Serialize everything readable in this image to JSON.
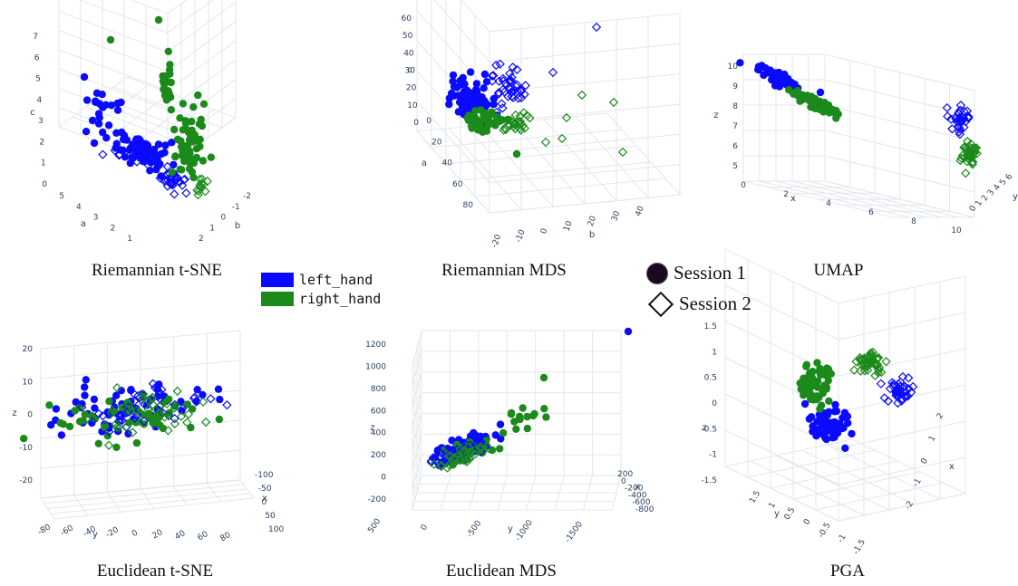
{
  "colors": {
    "left_hand": "#0a0aff",
    "right_hand": "#1b8a1b",
    "session1_marker": "#1a0a1e",
    "axis_text": "#2a3f5f",
    "grid": "#e2e6ee"
  },
  "legend": {
    "classes": [
      {
        "label": "left_hand",
        "color": "#0a0aff"
      },
      {
        "label": "right_hand",
        "color": "#1b8a1b"
      }
    ],
    "sessions": [
      {
        "label": "Session 1",
        "marker": "circle"
      },
      {
        "label": "Session 2",
        "marker": "diamond"
      }
    ]
  },
  "chart_data": [
    {
      "type": "scatter3d",
      "title": "Riemannian t-SNE",
      "axes": {
        "z": {
          "label": "c",
          "ticks": [
            "0",
            "1",
            "2",
            "3",
            "4",
            "5",
            "6",
            "7"
          ]
        },
        "a": {
          "label": "a",
          "ticks": [
            "5",
            "4",
            "3",
            "2",
            "1"
          ]
        },
        "b": {
          "label": "b",
          "ticks": [
            "-2",
            "-1",
            "0",
            "1",
            "2"
          ]
        }
      },
      "notes": "left_hand spread in upper-left; right_hand column rising at center-right"
    },
    {
      "type": "scatter3d",
      "title": "Riemannian MDS",
      "axes": {
        "z": {
          "label": "c",
          "ticks": [
            "0",
            "10",
            "20",
            "30",
            "40",
            "50",
            "60"
          ]
        },
        "a": {
          "label": "a",
          "ticks": [
            "0",
            "20",
            "40",
            "60",
            "80"
          ]
        },
        "b": {
          "label": "b",
          "ticks": [
            "-20",
            "-10",
            "0",
            "10",
            "20",
            "30",
            "40"
          ]
        }
      }
    },
    {
      "type": "scatter3d",
      "title": "UMAP",
      "axes": {
        "z": {
          "label": "z",
          "ticks": [
            "5",
            "6",
            "7",
            "8",
            "9",
            "10"
          ]
        },
        "x": {
          "label": "x",
          "ticks": [
            "0",
            "2",
            "4",
            "6",
            "8",
            "10"
          ]
        },
        "y": {
          "label": "y",
          "ticks": [
            "0",
            "1",
            "2",
            "3",
            "4",
            "5",
            "6"
          ]
        }
      }
    },
    {
      "type": "scatter3d",
      "title": "Euclidean t-SNE",
      "axes": {
        "z": {
          "label": "z",
          "ticks": [
            "-20",
            "-10",
            "0",
            "10",
            "20"
          ]
        },
        "y": {
          "label": "y",
          "ticks": [
            "-80",
            "-60",
            "-40",
            "-20",
            "0",
            "20",
            "40",
            "60",
            "80"
          ]
        },
        "x": {
          "label": "x",
          "ticks": [
            "-100",
            "-50",
            "0",
            "50",
            "100"
          ]
        }
      }
    },
    {
      "type": "scatter3d",
      "title": "Euclidean MDS",
      "axes": {
        "z": {
          "label": "z",
          "ticks": [
            "-200",
            "0",
            "200",
            "400",
            "600",
            "800",
            "1000",
            "1200"
          ]
        },
        "y": {
          "label": "y",
          "ticks": [
            "500",
            "0",
            "-500",
            "-1000",
            "-1500"
          ]
        },
        "x": {
          "label": "x",
          "ticks": [
            "200",
            "0",
            "-200",
            "-400",
            "-600",
            "-800"
          ]
        }
      }
    },
    {
      "type": "scatter3d",
      "title": "PGA",
      "axes": {
        "z": {
          "label": "z",
          "ticks": [
            "-1.5",
            "-1",
            "-0.5",
            "0",
            "0.5",
            "1",
            "1.5"
          ]
        },
        "y": {
          "label": "y",
          "ticks": [
            "1.5",
            "1",
            "0.5",
            "0",
            "-0.5",
            "-1",
            "-1.5"
          ]
        },
        "x": {
          "label": "x",
          "ticks": [
            "-2",
            "-1",
            "0",
            "1",
            "2"
          ]
        }
      }
    }
  ]
}
